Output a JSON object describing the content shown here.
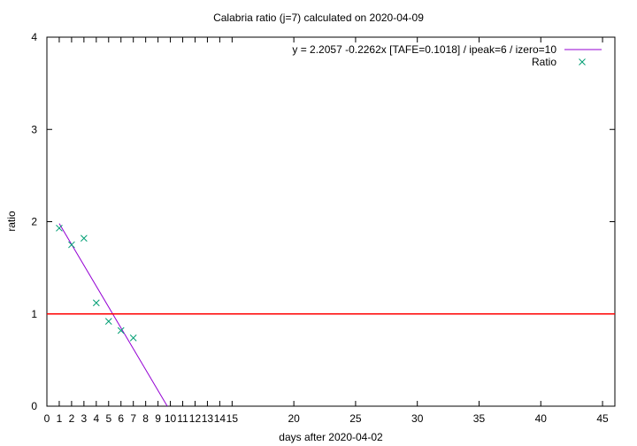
{
  "chart_data": {
    "type": "line",
    "title": "Calabria ratio (j=7) calculated on 2020-04-09",
    "xlabel": "days after 2020-04-02",
    "ylabel": "ratio",
    "xlim": [
      0,
      46
    ],
    "ylim": [
      0,
      4
    ],
    "x_ticks": [
      "0",
      "1",
      "2",
      "3",
      "4",
      "5",
      "6",
      "7",
      "8",
      "9",
      "10",
      "11",
      "12",
      "13",
      "14",
      "15",
      "20",
      "25",
      "30",
      "35",
      "40",
      "45"
    ],
    "y_ticks": [
      "0",
      "1",
      "2",
      "3",
      "4"
    ],
    "grid": false,
    "legend_position": "top-right",
    "series": [
      {
        "name": "y = 2.2057 -0.2262x  [TAFE=0.1018] / ipeak=6 / izero=10",
        "kind": "line",
        "color": "#9400d3",
        "intercept": 2.2057,
        "slope": -0.2262,
        "x_range": [
          1,
          9.75
        ]
      },
      {
        "name": "Ratio",
        "kind": "scatter",
        "marker": "x",
        "color": "#009e73",
        "x": [
          1,
          2,
          3,
          4,
          5,
          6,
          7
        ],
        "y": [
          1.93,
          1.75,
          1.82,
          1.12,
          0.92,
          0.82,
          0.74
        ]
      },
      {
        "kind": "hline",
        "color": "#ff0000",
        "y": 1
      }
    ]
  }
}
